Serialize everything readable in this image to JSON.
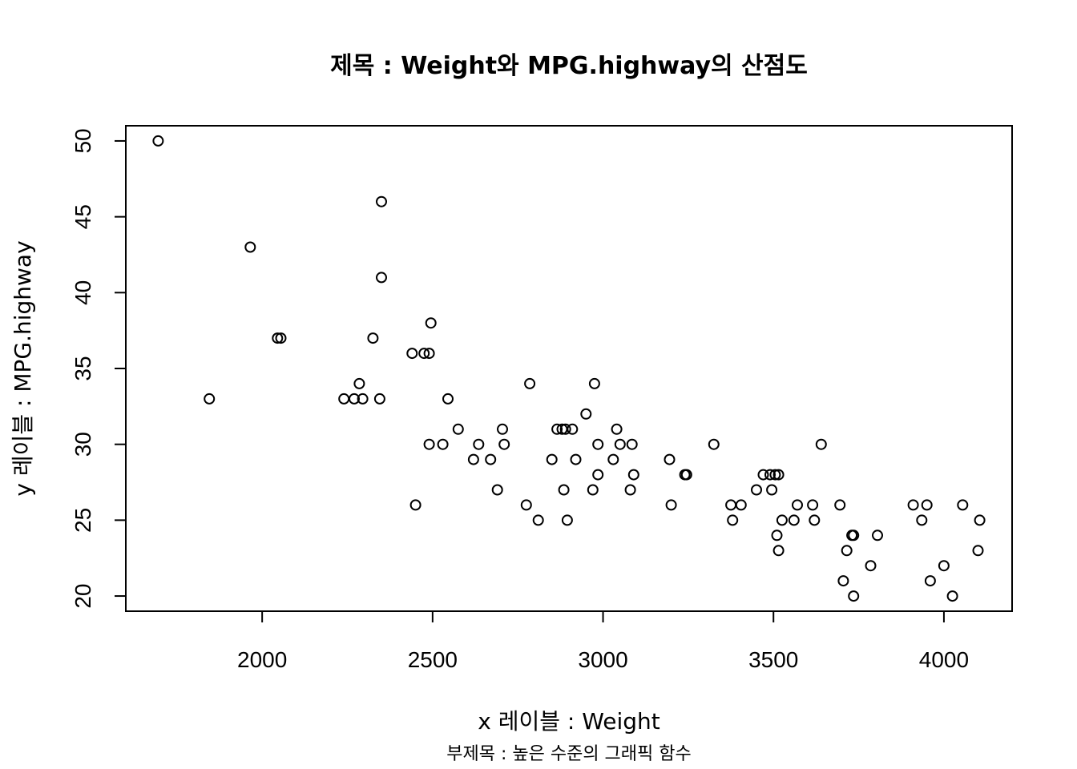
{
  "chart_data": {
    "type": "scatter",
    "title": "제목 : Weight와 MPG.highway의 산점도",
    "subtitle": "부제목 : 높은 수준의 그래픽 함수",
    "xlabel": "x 레이블 : Weight",
    "ylabel": "y 레이블 : MPG.highway",
    "xlim": [
      1600,
      4200
    ],
    "ylim": [
      19,
      51
    ],
    "x_ticks": [
      2000,
      2500,
      3000,
      3500,
      4000
    ],
    "y_ticks": [
      20,
      25,
      30,
      35,
      40,
      45,
      50
    ],
    "grid": false,
    "legend": "none",
    "point_color": "#000000",
    "points": [
      [
        1695,
        50
      ],
      [
        1845,
        33
      ],
      [
        1965,
        43
      ],
      [
        2045,
        37
      ],
      [
        2055,
        37
      ],
      [
        2240,
        33
      ],
      [
        2270,
        33
      ],
      [
        2285,
        34
      ],
      [
        2295,
        33
      ],
      [
        2325,
        37
      ],
      [
        2345,
        33
      ],
      [
        2350,
        46
      ],
      [
        2350,
        41
      ],
      [
        2440,
        36
      ],
      [
        2450,
        26
      ],
      [
        2475,
        36
      ],
      [
        2490,
        36
      ],
      [
        2490,
        30
      ],
      [
        2495,
        38
      ],
      [
        2530,
        30
      ],
      [
        2545,
        33
      ],
      [
        2575,
        31
      ],
      [
        2620,
        29
      ],
      [
        2635,
        30
      ],
      [
        2670,
        29
      ],
      [
        2690,
        27
      ],
      [
        2705,
        31
      ],
      [
        2710,
        30
      ],
      [
        2775,
        26
      ],
      [
        2785,
        34
      ],
      [
        2810,
        25
      ],
      [
        2850,
        29
      ],
      [
        2865,
        31
      ],
      [
        2880,
        31
      ],
      [
        2885,
        27
      ],
      [
        2890,
        31
      ],
      [
        2895,
        25
      ],
      [
        2910,
        31
      ],
      [
        2920,
        29
      ],
      [
        2950,
        32
      ],
      [
        2970,
        27
      ],
      [
        2975,
        34
      ],
      [
        2985,
        30
      ],
      [
        2985,
        28
      ],
      [
        3030,
        29
      ],
      [
        3040,
        31
      ],
      [
        3050,
        30
      ],
      [
        3080,
        27
      ],
      [
        3085,
        30
      ],
      [
        3090,
        28
      ],
      [
        3195,
        29
      ],
      [
        3200,
        26
      ],
      [
        3240,
        28
      ],
      [
        3245,
        28
      ],
      [
        3325,
        30
      ],
      [
        3375,
        26
      ],
      [
        3380,
        25
      ],
      [
        3405,
        26
      ],
      [
        3450,
        27
      ],
      [
        3470,
        28
      ],
      [
        3490,
        28
      ],
      [
        3495,
        27
      ],
      [
        3505,
        28
      ],
      [
        3510,
        24
      ],
      [
        3515,
        23
      ],
      [
        3515,
        28
      ],
      [
        3525,
        25
      ],
      [
        3560,
        25
      ],
      [
        3570,
        26
      ],
      [
        3615,
        26
      ],
      [
        3620,
        25
      ],
      [
        3640,
        30
      ],
      [
        3695,
        26
      ],
      [
        3705,
        21
      ],
      [
        3715,
        23
      ],
      [
        3730,
        24
      ],
      [
        3735,
        24
      ],
      [
        3735,
        20
      ],
      [
        3785,
        22
      ],
      [
        3805,
        24
      ],
      [
        3910,
        26
      ],
      [
        3935,
        25
      ],
      [
        3950,
        26
      ],
      [
        3960,
        21
      ],
      [
        4000,
        22
      ],
      [
        4025,
        20
      ],
      [
        4055,
        26
      ],
      [
        4100,
        23
      ],
      [
        4105,
        25
      ]
    ]
  }
}
